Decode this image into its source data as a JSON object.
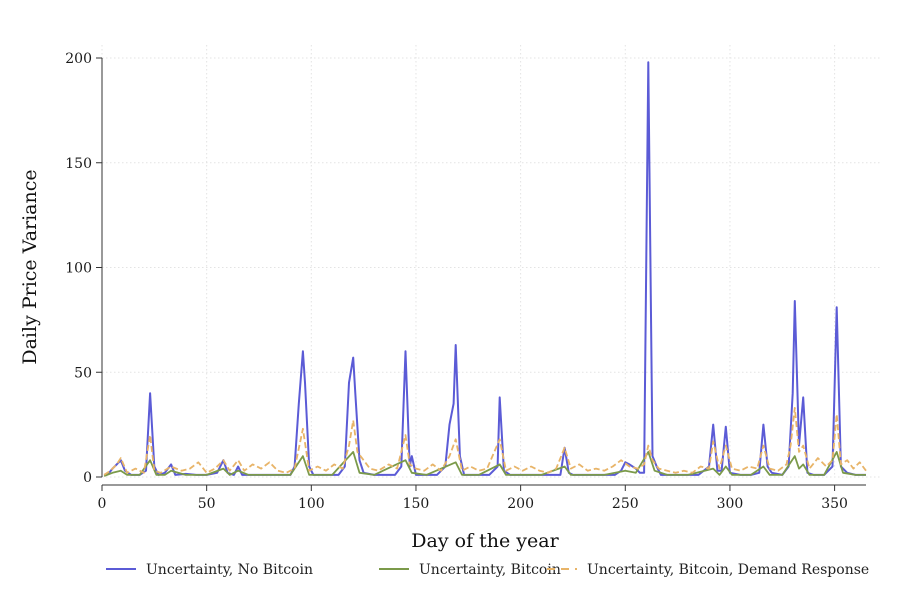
{
  "chart_data": {
    "type": "line",
    "xlabel": "Day of the year",
    "ylabel": "Daily Price Variance",
    "xlim": [
      0,
      365
    ],
    "ylim": [
      0,
      200
    ],
    "x_ticks": [
      0,
      50,
      100,
      150,
      200,
      250,
      300,
      350
    ],
    "y_ticks": [
      0,
      50,
      100,
      150,
      200
    ],
    "grid": true,
    "legend_position": "bottom",
    "series": [
      {
        "name": "Uncertainty, No Bitcoin",
        "color": "#5b5bd6",
        "style": "solid",
        "points": [
          [
            1,
            1
          ],
          [
            3,
            1.5
          ],
          [
            5,
            4
          ],
          [
            7,
            6
          ],
          [
            9,
            8
          ],
          [
            11,
            3
          ],
          [
            14,
            1
          ],
          [
            18,
            1
          ],
          [
            21,
            3
          ],
          [
            23,
            40
          ],
          [
            25,
            5
          ],
          [
            27,
            1
          ],
          [
            30,
            2
          ],
          [
            33,
            6
          ],
          [
            35,
            1
          ],
          [
            40,
            1.5
          ],
          [
            45,
            1
          ],
          [
            50,
            1
          ],
          [
            55,
            2
          ],
          [
            58,
            8
          ],
          [
            60,
            2
          ],
          [
            63,
            1
          ],
          [
            65,
            5
          ],
          [
            67,
            1
          ],
          [
            70,
            1
          ],
          [
            75,
            1
          ],
          [
            80,
            1
          ],
          [
            85,
            1
          ],
          [
            90,
            1
          ],
          [
            92,
            5
          ],
          [
            94,
            35
          ],
          [
            96,
            60
          ],
          [
            97,
            45
          ],
          [
            99,
            5
          ],
          [
            101,
            1
          ],
          [
            105,
            1
          ],
          [
            110,
            1
          ],
          [
            113,
            1
          ],
          [
            116,
            5
          ],
          [
            118,
            45
          ],
          [
            120,
            57
          ],
          [
            121,
            40
          ],
          [
            123,
            8
          ],
          [
            125,
            2
          ],
          [
            130,
            1
          ],
          [
            135,
            1
          ],
          [
            140,
            1
          ],
          [
            143,
            5
          ],
          [
            145,
            60
          ],
          [
            147,
            5
          ],
          [
            148,
            10
          ],
          [
            150,
            1
          ],
          [
            155,
            1
          ],
          [
            160,
            1
          ],
          [
            164,
            5
          ],
          [
            166,
            25
          ],
          [
            168,
            35
          ],
          [
            169,
            63
          ],
          [
            171,
            10
          ],
          [
            173,
            1
          ],
          [
            180,
            1
          ],
          [
            185,
            1
          ],
          [
            189,
            5
          ],
          [
            190,
            38
          ],
          [
            192,
            3
          ],
          [
            195,
            1
          ],
          [
            200,
            1
          ],
          [
            205,
            1
          ],
          [
            210,
            1
          ],
          [
            215,
            1
          ],
          [
            219,
            1
          ],
          [
            221,
            14
          ],
          [
            223,
            2
          ],
          [
            225,
            1
          ],
          [
            230,
            1
          ],
          [
            235,
            1
          ],
          [
            240,
            1
          ],
          [
            245,
            1
          ],
          [
            248,
            3
          ],
          [
            250,
            7
          ],
          [
            252,
            6
          ],
          [
            255,
            4
          ],
          [
            257,
            2
          ],
          [
            259,
            2
          ],
          [
            261,
            198
          ],
          [
            263,
            10
          ],
          [
            265,
            5
          ],
          [
            267,
            1
          ],
          [
            270,
            1
          ],
          [
            275,
            1
          ],
          [
            280,
            1
          ],
          [
            285,
            1
          ],
          [
            290,
            5
          ],
          [
            292,
            25
          ],
          [
            294,
            3
          ],
          [
            296,
            3
          ],
          [
            298,
            24
          ],
          [
            300,
            2
          ],
          [
            305,
            1
          ],
          [
            310,
            1
          ],
          [
            314,
            2
          ],
          [
            316,
            25
          ],
          [
            318,
            5
          ],
          [
            320,
            2
          ],
          [
            325,
            1
          ],
          [
            328,
            5
          ],
          [
            330,
            40
          ],
          [
            331,
            84
          ],
          [
            333,
            15
          ],
          [
            335,
            38
          ],
          [
            337,
            2
          ],
          [
            340,
            1
          ],
          [
            345,
            1
          ],
          [
            349,
            5
          ],
          [
            351,
            81
          ],
          [
            353,
            5
          ],
          [
            356,
            2
          ],
          [
            360,
            1
          ],
          [
            365,
            1
          ]
        ]
      },
      {
        "name": "Uncertainty, Bitcoin",
        "color": "#7b9a4a",
        "style": "solid",
        "points": [
          [
            1,
            0.5
          ],
          [
            5,
            2
          ],
          [
            9,
            3
          ],
          [
            12,
            1
          ],
          [
            18,
            1
          ],
          [
            23,
            8
          ],
          [
            26,
            1
          ],
          [
            30,
            1
          ],
          [
            33,
            3
          ],
          [
            40,
            1
          ],
          [
            50,
            1
          ],
          [
            58,
            4
          ],
          [
            61,
            1
          ],
          [
            65,
            3
          ],
          [
            70,
            1
          ],
          [
            80,
            1
          ],
          [
            90,
            1
          ],
          [
            96,
            10
          ],
          [
            99,
            1
          ],
          [
            110,
            1
          ],
          [
            120,
            12
          ],
          [
            123,
            2
          ],
          [
            130,
            1
          ],
          [
            145,
            8
          ],
          [
            148,
            2
          ],
          [
            155,
            1
          ],
          [
            169,
            7
          ],
          [
            172,
            1
          ],
          [
            180,
            1
          ],
          [
            190,
            6
          ],
          [
            193,
            1
          ],
          [
            200,
            1
          ],
          [
            210,
            1
          ],
          [
            221,
            5
          ],
          [
            224,
            1
          ],
          [
            240,
            1
          ],
          [
            250,
            3
          ],
          [
            255,
            2
          ],
          [
            261,
            12
          ],
          [
            264,
            3
          ],
          [
            270,
            1
          ],
          [
            280,
            1
          ],
          [
            292,
            4
          ],
          [
            295,
            1
          ],
          [
            298,
            5
          ],
          [
            301,
            1
          ],
          [
            310,
            1
          ],
          [
            316,
            5
          ],
          [
            319,
            1
          ],
          [
            325,
            1
          ],
          [
            331,
            10
          ],
          [
            333,
            4
          ],
          [
            335,
            6
          ],
          [
            338,
            1
          ],
          [
            345,
            1
          ],
          [
            351,
            12
          ],
          [
            354,
            2
          ],
          [
            360,
            1
          ],
          [
            365,
            1
          ]
        ]
      },
      {
        "name": "Uncertainty, Bitcoin, Demand Response",
        "color": "#e8b468",
        "style": "dashed",
        "points": [
          [
            1,
            1
          ],
          [
            4,
            3
          ],
          [
            7,
            6
          ],
          [
            9,
            9
          ],
          [
            12,
            2
          ],
          [
            16,
            4
          ],
          [
            20,
            2
          ],
          [
            23,
            20
          ],
          [
            25,
            3
          ],
          [
            28,
            2
          ],
          [
            33,
            5
          ],
          [
            38,
            3
          ],
          [
            42,
            4
          ],
          [
            46,
            7
          ],
          [
            50,
            2
          ],
          [
            54,
            4
          ],
          [
            58,
            8
          ],
          [
            61,
            3
          ],
          [
            65,
            8
          ],
          [
            68,
            3
          ],
          [
            72,
            6
          ],
          [
            76,
            4
          ],
          [
            80,
            7
          ],
          [
            84,
            3
          ],
          [
            88,
            2
          ],
          [
            92,
            4
          ],
          [
            96,
            23
          ],
          [
            99,
            3
          ],
          [
            103,
            5
          ],
          [
            107,
            3
          ],
          [
            111,
            6
          ],
          [
            115,
            4
          ],
          [
            118,
            15
          ],
          [
            120,
            27
          ],
          [
            122,
            12
          ],
          [
            125,
            8
          ],
          [
            128,
            4
          ],
          [
            132,
            3
          ],
          [
            137,
            6
          ],
          [
            141,
            4
          ],
          [
            145,
            20
          ],
          [
            147,
            6
          ],
          [
            150,
            4
          ],
          [
            154,
            3
          ],
          [
            158,
            6
          ],
          [
            162,
            3
          ],
          [
            166,
            10
          ],
          [
            169,
            18
          ],
          [
            172,
            3
          ],
          [
            176,
            5
          ],
          [
            180,
            3
          ],
          [
            184,
            4
          ],
          [
            190,
            18
          ],
          [
            193,
            3
          ],
          [
            197,
            5
          ],
          [
            201,
            3
          ],
          [
            205,
            5
          ],
          [
            209,
            3
          ],
          [
            213,
            2
          ],
          [
            217,
            4
          ],
          [
            221,
            14
          ],
          [
            224,
            4
          ],
          [
            228,
            6
          ],
          [
            232,
            3
          ],
          [
            236,
            4
          ],
          [
            240,
            3
          ],
          [
            244,
            5
          ],
          [
            248,
            8
          ],
          [
            252,
            5
          ],
          [
            256,
            4
          ],
          [
            259,
            6
          ],
          [
            261,
            15
          ],
          [
            263,
            8
          ],
          [
            266,
            4
          ],
          [
            270,
            3
          ],
          [
            274,
            2
          ],
          [
            278,
            3
          ],
          [
            282,
            2
          ],
          [
            286,
            5
          ],
          [
            290,
            4
          ],
          [
            292,
            17
          ],
          [
            295,
            4
          ],
          [
            298,
            15
          ],
          [
            301,
            4
          ],
          [
            305,
            3
          ],
          [
            309,
            5
          ],
          [
            313,
            4
          ],
          [
            316,
            15
          ],
          [
            319,
            4
          ],
          [
            323,
            3
          ],
          [
            327,
            6
          ],
          [
            329,
            15
          ],
          [
            331,
            33
          ],
          [
            333,
            12
          ],
          [
            335,
            15
          ],
          [
            338,
            4
          ],
          [
            342,
            9
          ],
          [
            346,
            5
          ],
          [
            349,
            8
          ],
          [
            351,
            30
          ],
          [
            353,
            6
          ],
          [
            356,
            8
          ],
          [
            359,
            4
          ],
          [
            362,
            7
          ],
          [
            365,
            3
          ]
        ]
      }
    ]
  }
}
